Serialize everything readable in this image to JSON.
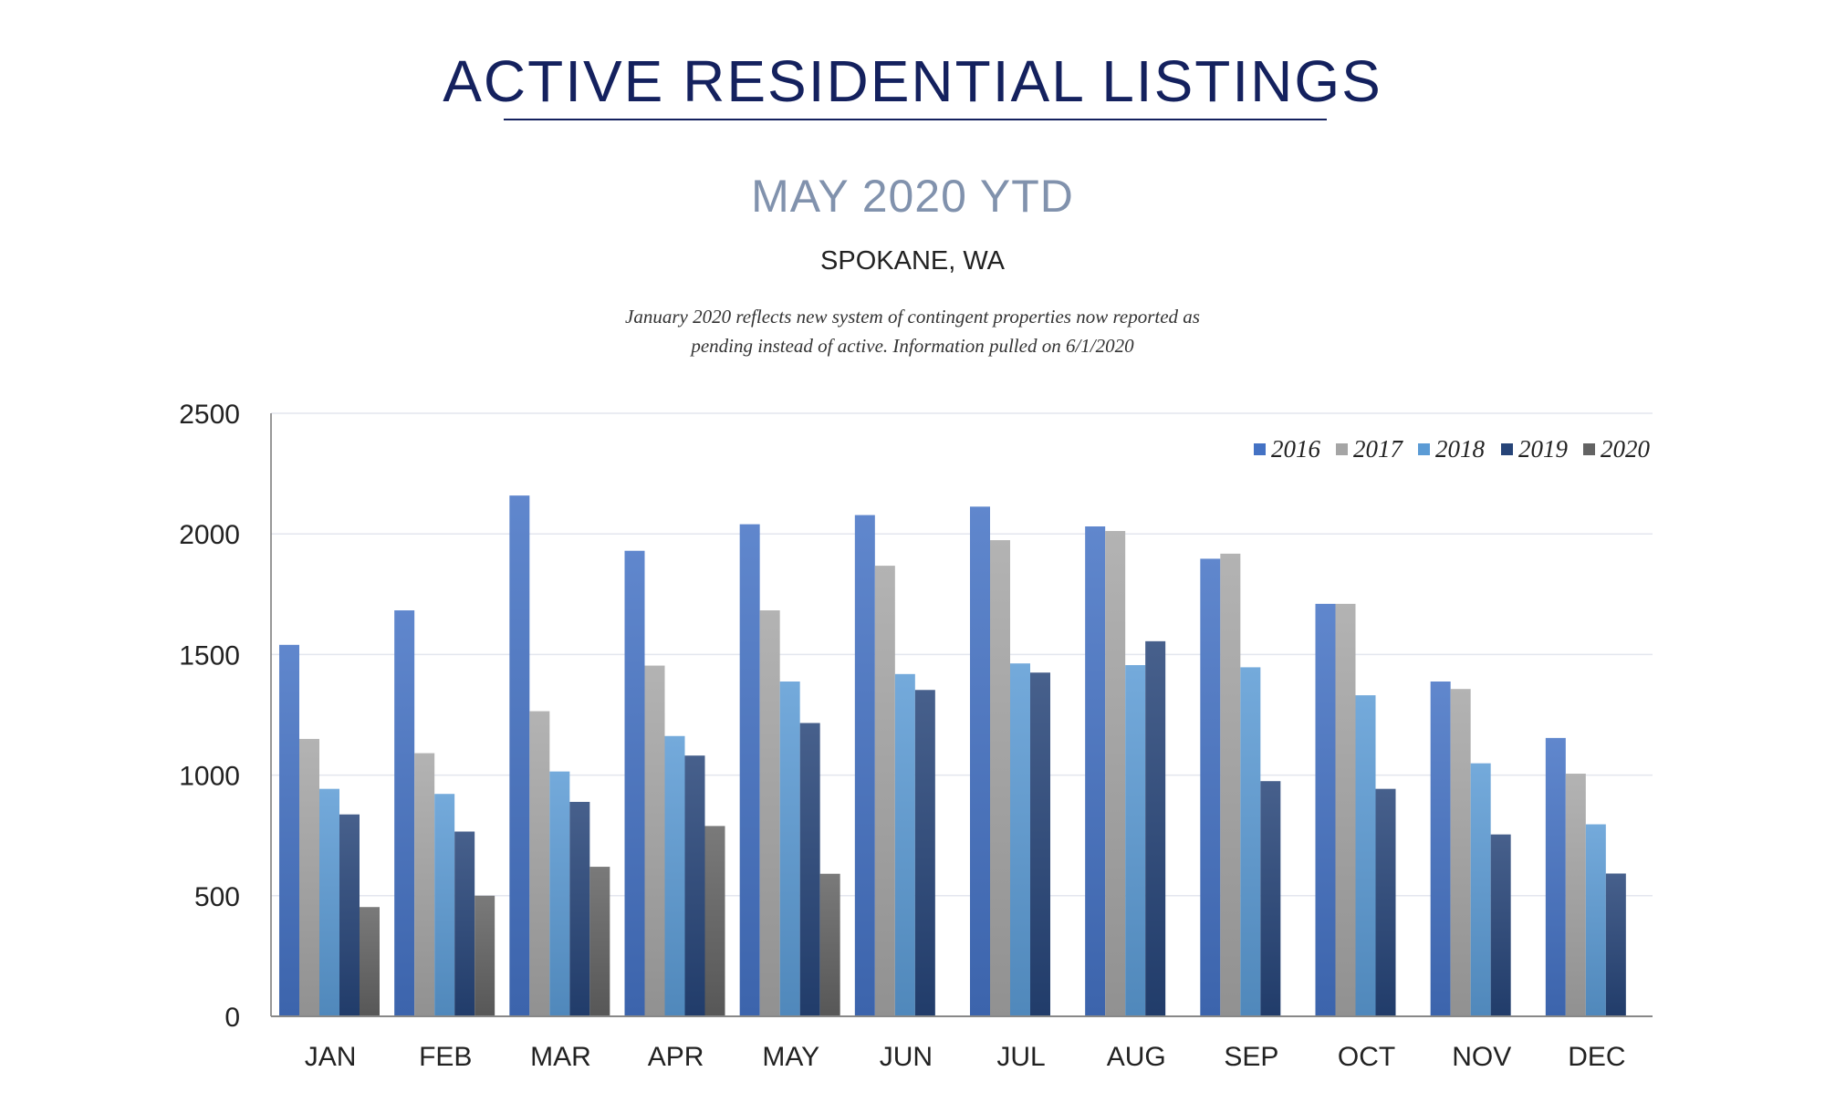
{
  "header": {
    "title": "ACTIVE RESIDENTIAL LISTINGS",
    "subtitle": "MAY 2020 YTD",
    "location": "SPOKANE, WA",
    "note_line1": "January 2020 reflects new system of contingent properties now reported as",
    "note_line2": "pending instead of active.  Information pulled on 6/1/2020"
  },
  "chart_data": {
    "type": "bar",
    "title": "ACTIVE RESIDENTIAL LISTINGS",
    "subtitle": "MAY 2020 YTD",
    "xlabel": "",
    "ylabel": "",
    "categories": [
      "JAN",
      "FEB",
      "MAR",
      "APR",
      "MAY",
      "JUN",
      "JUL",
      "AUG",
      "SEP",
      "OCT",
      "NOV",
      "DEC"
    ],
    "ylim": [
      0,
      2500
    ],
    "yticks": [
      0,
      500,
      1000,
      1500,
      2000,
      2500
    ],
    "grid": true,
    "legend_position": "top-right",
    "series": [
      {
        "name": "2016",
        "color": "#4472c4",
        "values": [
          1540,
          1683,
          2159,
          1930,
          2040,
          2078,
          2113,
          2031,
          1897,
          1710,
          1388,
          1154
        ]
      },
      {
        "name": "2017",
        "color": "#a5a5a5",
        "values": [
          1150,
          1091,
          1265,
          1454,
          1683,
          1868,
          1974,
          2012,
          1918,
          1710,
          1357,
          1006
        ]
      },
      {
        "name": "2018",
        "color": "#5b9bd5",
        "values": [
          943,
          922,
          1015,
          1162,
          1388,
          1419,
          1463,
          1456,
          1447,
          1331,
          1049,
          796
        ]
      },
      {
        "name": "2019",
        "color": "#264478",
        "values": [
          837,
          766,
          889,
          1081,
          1216,
          1353,
          1425,
          1555,
          975,
          943,
          754,
          592
        ]
      },
      {
        "name": "2020",
        "color": "#636363",
        "values": [
          453,
          500,
          620,
          789,
          591,
          null,
          null,
          null,
          null,
          null,
          null,
          null
        ]
      }
    ]
  }
}
